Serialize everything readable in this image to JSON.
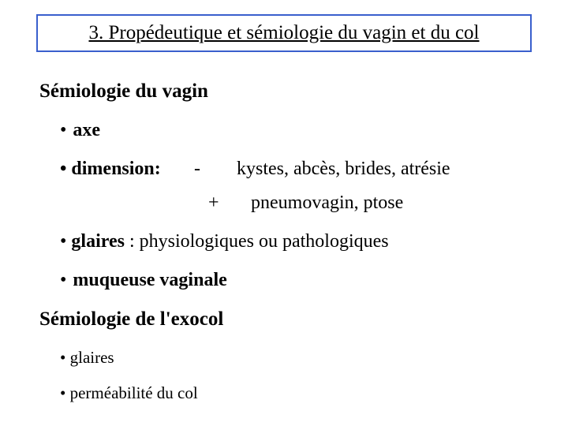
{
  "colors": {
    "border": "#3a5fcd",
    "text": "#000000",
    "background": "#ffffff"
  },
  "title": "3. Propédeutique et sémiologie du vagin et du col",
  "section1": {
    "heading": "Sémiologie du vagin",
    "axe": "axe",
    "dimension_label": "dimension:",
    "minus_sign": "-",
    "minus_desc": "kystes, abcès, brides, atrésie",
    "plus_sign": "+",
    "plus_desc": "pneumovagin, ptose",
    "glaires_bold": "glaires",
    "glaires_rest": " : physiologiques ou pathologiques",
    "muqueuse": "muqueuse vaginale"
  },
  "section2": {
    "heading": "Sémiologie de l'exocol",
    "glaires": "glaires",
    "permeabilite": "perméabilité du col"
  }
}
